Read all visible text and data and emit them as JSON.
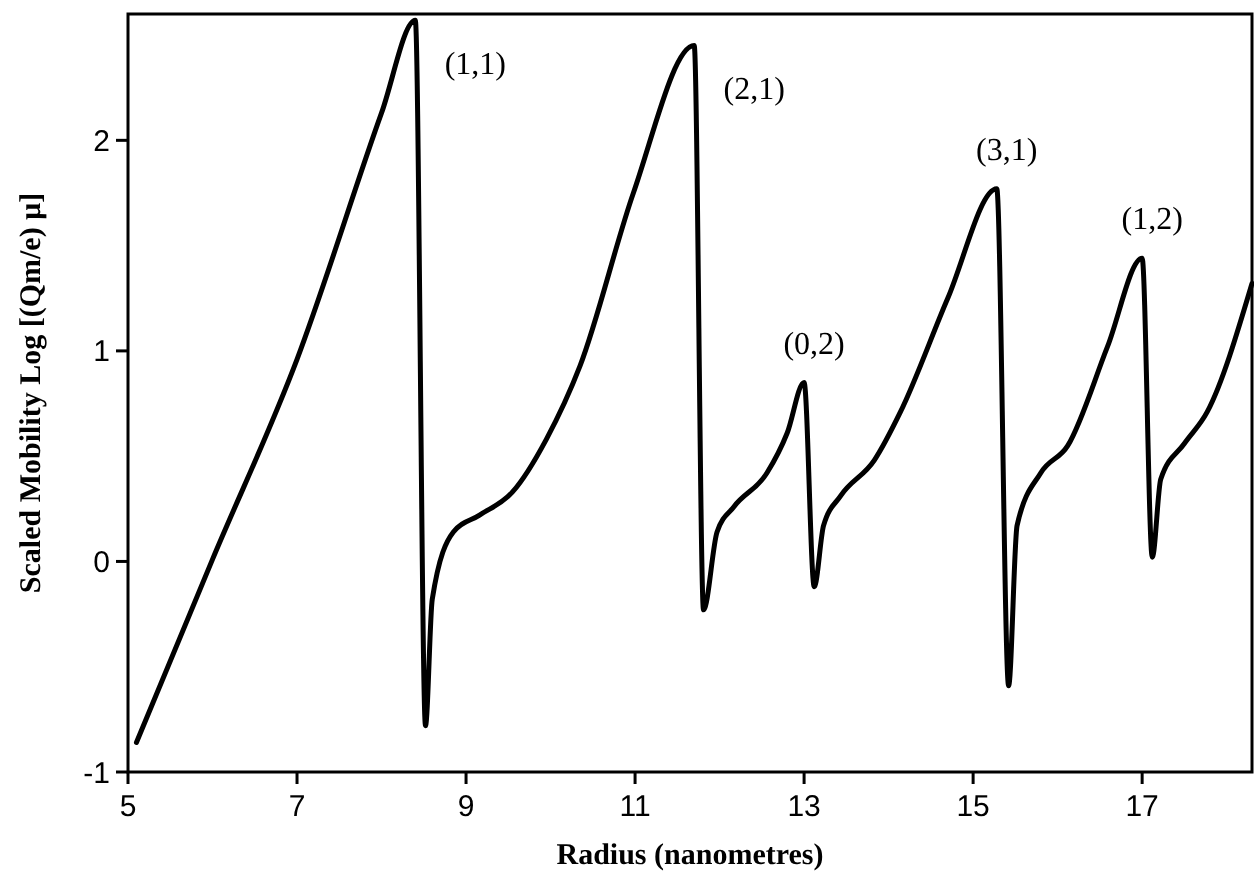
{
  "chart_data": {
    "type": "line",
    "xlabel": "Radius (nanometres)",
    "ylabel": "Scaled Mobility Log [(Qm/e) μ]",
    "xlim": [
      5,
      18.3
    ],
    "ylim": [
      -1,
      2.6
    ],
    "xticks": [
      5,
      7,
      9,
      11,
      13,
      15,
      17
    ],
    "yticks": [
      -1,
      0,
      1,
      2
    ],
    "grid": false,
    "marker": "none",
    "line_style": "solid",
    "series": [
      {
        "color": "#000000",
        "x": [
          5.1,
          6.0,
          7.0,
          8.0,
          8.4,
          8.52,
          8.6,
          8.85,
          9.16,
          9.55,
          9.95,
          10.35,
          10.98,
          11.7,
          11.81,
          11.97,
          12.17,
          12.56,
          12.8,
          13.0,
          13.12,
          13.23,
          13.43,
          13.83,
          14.14,
          14.7,
          15.28,
          15.42,
          15.52,
          15.8,
          16.12,
          16.59,
          17.0,
          17.12,
          17.22,
          17.5,
          17.77,
          18.3
        ],
        "values": [
          -0.86,
          0.01,
          0.96,
          2.13,
          2.57,
          -0.78,
          -0.18,
          0.14,
          0.22,
          0.33,
          0.58,
          0.93,
          1.75,
          2.45,
          -0.23,
          0.14,
          0.26,
          0.42,
          0.61,
          0.85,
          -0.12,
          0.17,
          0.31,
          0.48,
          0.71,
          1.25,
          1.77,
          -0.59,
          0.17,
          0.42,
          0.55,
          1.02,
          1.44,
          0.02,
          0.39,
          0.56,
          0.71,
          1.32
        ]
      }
    ],
    "annotations": [
      {
        "text": "(1,1)",
        "x": 8.4,
        "y": 2.57
      },
      {
        "text": "(2,1)",
        "x": 11.7,
        "y": 2.45
      },
      {
        "text": "(0,2)",
        "x": 13.0,
        "y": 0.85
      },
      {
        "text": "(3,1)",
        "x": 15.28,
        "y": 1.77
      },
      {
        "text": "(1,2)",
        "x": 17.0,
        "y": 1.44
      }
    ]
  }
}
